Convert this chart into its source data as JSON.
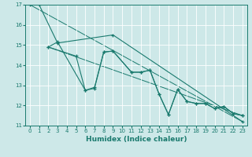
{
  "xlabel": "Humidex (Indice chaleur)",
  "background_color": "#cde8e8",
  "grid_color": "#ffffff",
  "line_color": "#1a7a6e",
  "xlim": [
    -0.5,
    23.5
  ],
  "ylim": [
    11,
    17
  ],
  "xticks": [
    0,
    1,
    2,
    3,
    4,
    5,
    6,
    7,
    8,
    9,
    10,
    11,
    12,
    13,
    14,
    15,
    16,
    17,
    18,
    19,
    20,
    21,
    22,
    23
  ],
  "yticks": [
    11,
    12,
    13,
    14,
    15,
    16,
    17
  ],
  "trend1_x": [
    0,
    23
  ],
  "trend1_y": [
    17.0,
    11.2
  ],
  "trend2_x": [
    2,
    23
  ],
  "trend2_y": [
    14.9,
    11.5
  ],
  "line1_x": [
    0,
    1,
    3,
    9,
    23
  ],
  "line1_y": [
    17.0,
    17.0,
    15.1,
    15.5,
    11.2
  ],
  "line2_x": [
    2,
    3,
    6,
    7,
    8,
    9,
    11,
    12,
    13,
    14,
    15,
    16,
    17,
    18,
    19,
    20,
    21,
    22,
    23
  ],
  "line2_y": [
    14.9,
    15.15,
    12.75,
    12.85,
    14.65,
    14.7,
    13.65,
    13.65,
    13.75,
    12.55,
    11.55,
    12.8,
    12.2,
    12.1,
    12.1,
    11.85,
    11.95,
    11.6,
    11.5
  ],
  "line3_x": [
    2,
    5,
    6,
    7,
    8,
    9,
    11,
    12,
    13,
    14,
    15,
    16,
    17,
    18,
    19,
    20,
    21,
    22,
    23
  ],
  "line3_y": [
    14.9,
    14.45,
    12.75,
    12.9,
    14.65,
    14.7,
    13.65,
    13.65,
    13.75,
    12.55,
    11.55,
    12.8,
    12.2,
    12.1,
    12.1,
    11.85,
    11.95,
    11.6,
    11.5
  ]
}
